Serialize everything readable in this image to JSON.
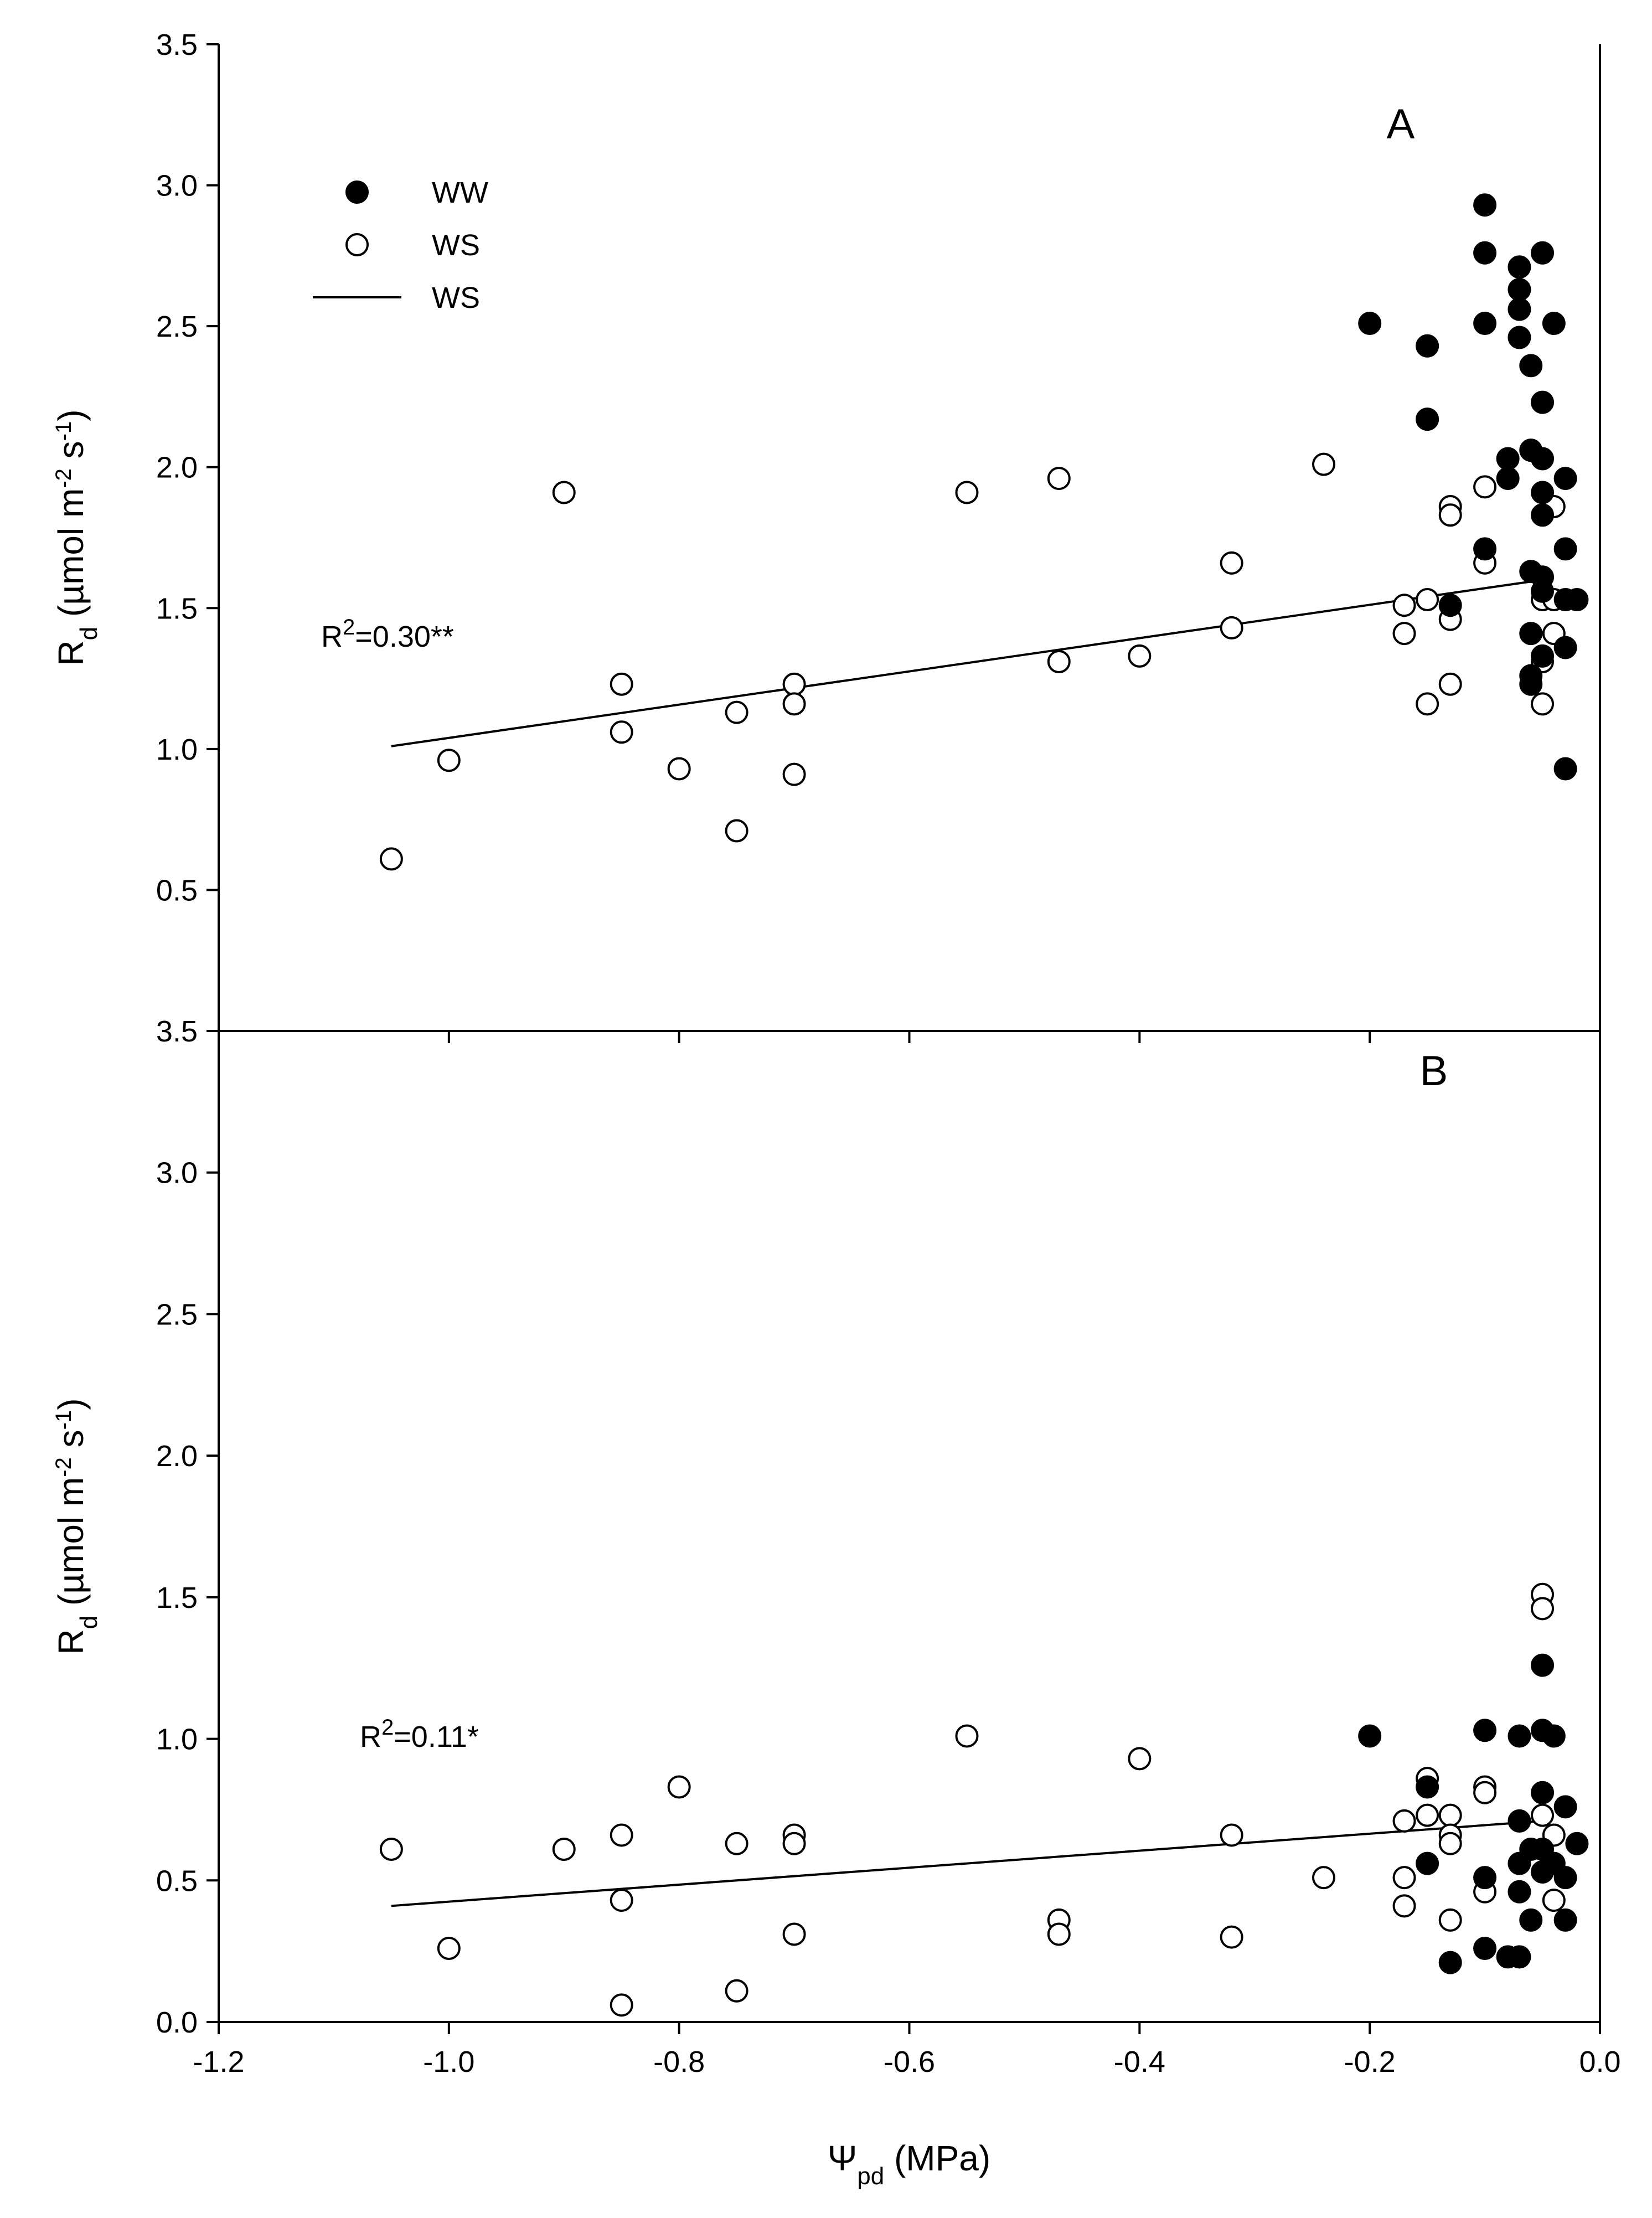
{
  "chart_data": [
    {
      "panel": "A",
      "type": "scatter",
      "xlabel": "Ψ",
      "xlabel_sub": "pd",
      "xlabel_unit": " (MPa)",
      "ylabel": {
        "main": "R",
        "sub": "d",
        "unit_start": " (µmol m",
        "exp1": "-2",
        "mid": " s",
        "exp2": "-1",
        "end": ")"
      },
      "xlim": [
        -1.2,
        0.0
      ],
      "ylim": [
        0.0,
        3.5
      ],
      "xticks": [
        "-1.2",
        "-1.0",
        "-0.8",
        "-0.6",
        "-0.4",
        "-0.2",
        "0.0"
      ],
      "xtick_values": [
        -1.2,
        -1.0,
        -0.8,
        -0.6,
        -0.4,
        -0.2,
        0.0
      ],
      "yticks": [
        "3.5",
        "3.0",
        "2.5",
        "2.0",
        "1.5",
        "1.0",
        "0.5"
      ],
      "ytick_values": [
        3.5,
        3.0,
        2.5,
        2.0,
        1.5,
        1.0,
        0.5
      ],
      "legend": {
        "position": "top-left",
        "items": [
          {
            "marker": "filled-circle",
            "label": "WW"
          },
          {
            "marker": "open-circle",
            "label": "WS"
          },
          {
            "marker": "line",
            "label": "WS"
          }
        ]
      },
      "annotation": {
        "text": "R",
        "sup": "2",
        "rest": "=0.30**"
      },
      "series": [
        {
          "name": "WW",
          "marker": "filled",
          "points": [
            [
              -0.2,
              2.51
            ],
            [
              -0.15,
              2.43
            ],
            [
              -0.15,
              2.17
            ],
            [
              -0.1,
              2.93
            ],
            [
              -0.1,
              2.76
            ],
            [
              -0.1,
              2.51
            ],
            [
              -0.07,
              2.71
            ],
            [
              -0.07,
              2.63
            ],
            [
              -0.07,
              2.56
            ],
            [
              -0.07,
              2.46
            ],
            [
              -0.06,
              2.36
            ],
            [
              -0.05,
              2.76
            ],
            [
              -0.04,
              2.51
            ],
            [
              -0.05,
              2.23
            ],
            [
              -0.08,
              2.03
            ],
            [
              -0.08,
              1.96
            ],
            [
              -0.06,
              2.06
            ],
            [
              -0.05,
              2.03
            ],
            [
              -0.03,
              1.96
            ],
            [
              -0.05,
              1.91
            ],
            [
              -0.05,
              1.83
            ],
            [
              -0.1,
              1.71
            ],
            [
              -0.03,
              1.71
            ],
            [
              -0.06,
              1.63
            ],
            [
              -0.05,
              1.61
            ],
            [
              -0.05,
              1.56
            ],
            [
              -0.13,
              1.51
            ],
            [
              -0.03,
              1.53
            ],
            [
              -0.02,
              1.53
            ],
            [
              -0.06,
              1.41
            ],
            [
              -0.03,
              1.36
            ],
            [
              -0.05,
              1.33
            ],
            [
              -0.06,
              1.26
            ],
            [
              -0.06,
              1.23
            ],
            [
              -0.03,
              0.93
            ]
          ]
        },
        {
          "name": "WS",
          "marker": "open",
          "points": [
            [
              -1.05,
              0.61
            ],
            [
              -1.0,
              0.96
            ],
            [
              -0.9,
              1.91
            ],
            [
              -0.85,
              1.23
            ],
            [
              -0.85,
              1.06
            ],
            [
              -0.8,
              0.93
            ],
            [
              -0.75,
              1.13
            ],
            [
              -0.75,
              0.71
            ],
            [
              -0.7,
              1.23
            ],
            [
              -0.7,
              1.16
            ],
            [
              -0.7,
              0.91
            ],
            [
              -0.55,
              1.91
            ],
            [
              -0.47,
              1.96
            ],
            [
              -0.47,
              1.31
            ],
            [
              -0.4,
              1.33
            ],
            [
              -0.32,
              1.66
            ],
            [
              -0.32,
              1.43
            ],
            [
              -0.24,
              2.01
            ],
            [
              -0.17,
              1.51
            ],
            [
              -0.17,
              1.41
            ],
            [
              -0.15,
              1.53
            ],
            [
              -0.15,
              1.16
            ],
            [
              -0.13,
              1.86
            ],
            [
              -0.13,
              1.83
            ],
            [
              -0.13,
              1.46
            ],
            [
              -0.13,
              1.23
            ],
            [
              -0.1,
              1.93
            ],
            [
              -0.1,
              1.66
            ],
            [
              -0.05,
              1.53
            ],
            [
              -0.05,
              1.31
            ],
            [
              -0.05,
              1.16
            ],
            [
              -0.04,
              1.86
            ],
            [
              -0.04,
              1.53
            ],
            [
              -0.04,
              1.41
            ]
          ]
        }
      ],
      "fit": {
        "series": "WS",
        "x": [
          -1.05,
          -0.05
        ],
        "y": [
          1.01,
          1.6
        ]
      }
    },
    {
      "panel": "B",
      "type": "scatter",
      "xlabel": "Ψ",
      "xlabel_sub": "pd",
      "xlabel_unit": " (MPa)",
      "ylabel": {
        "main": "R",
        "sub": "d",
        "unit_start": " (µmol m",
        "exp1": "-2",
        "mid": " s",
        "exp2": "-1",
        "end": ")"
      },
      "xlim": [
        -1.2,
        0.0
      ],
      "ylim": [
        0.0,
        3.5
      ],
      "xticks": [
        "-1.2",
        "-1.0",
        "-0.8",
        "-0.6",
        "-0.4",
        "-0.2",
        "0.0"
      ],
      "xtick_values": [
        -1.2,
        -1.0,
        -0.8,
        -0.6,
        -0.4,
        -0.2,
        0.0
      ],
      "yticks": [
        "3.5",
        "3.0",
        "2.5",
        "2.0",
        "1.5",
        "1.0",
        "0.5",
        "0.0"
      ],
      "ytick_values": [
        3.5,
        3.0,
        2.5,
        2.0,
        1.5,
        1.0,
        0.5,
        0.0
      ],
      "annotation": {
        "text": "R",
        "sup": "2",
        "rest": "=0.11*"
      },
      "series": [
        {
          "name": "WW",
          "marker": "filled",
          "points": [
            [
              -0.2,
              1.01
            ],
            [
              -0.15,
              0.83
            ],
            [
              -0.15,
              0.56
            ],
            [
              -0.13,
              0.21
            ],
            [
              -0.1,
              1.03
            ],
            [
              -0.1,
              0.51
            ],
            [
              -0.1,
              0.26
            ],
            [
              -0.08,
              0.23
            ],
            [
              -0.07,
              1.01
            ],
            [
              -0.07,
              0.71
            ],
            [
              -0.07,
              0.56
            ],
            [
              -0.07,
              0.46
            ],
            [
              -0.07,
              0.23
            ],
            [
              -0.06,
              0.61
            ],
            [
              -0.06,
              0.36
            ],
            [
              -0.05,
              1.26
            ],
            [
              -0.05,
              1.03
            ],
            [
              -0.05,
              0.81
            ],
            [
              -0.05,
              0.61
            ],
            [
              -0.05,
              0.53
            ],
            [
              -0.04,
              1.01
            ],
            [
              -0.04,
              0.56
            ],
            [
              -0.03,
              0.76
            ],
            [
              -0.03,
              0.51
            ],
            [
              -0.03,
              0.36
            ],
            [
              -0.02,
              0.63
            ]
          ]
        },
        {
          "name": "WS",
          "marker": "open",
          "points": [
            [
              -1.05,
              0.61
            ],
            [
              -1.0,
              0.26
            ],
            [
              -0.9,
              0.61
            ],
            [
              -0.85,
              0.66
            ],
            [
              -0.85,
              0.43
            ],
            [
              -0.85,
              0.06
            ],
            [
              -0.8,
              0.83
            ],
            [
              -0.75,
              0.63
            ],
            [
              -0.75,
              0.11
            ],
            [
              -0.7,
              0.66
            ],
            [
              -0.7,
              0.63
            ],
            [
              -0.7,
              0.31
            ],
            [
              -0.55,
              1.01
            ],
            [
              -0.47,
              0.36
            ],
            [
              -0.47,
              0.31
            ],
            [
              -0.4,
              0.93
            ],
            [
              -0.32,
              0.66
            ],
            [
              -0.32,
              0.3
            ],
            [
              -0.24,
              0.51
            ],
            [
              -0.17,
              0.71
            ],
            [
              -0.17,
              0.51
            ],
            [
              -0.17,
              0.41
            ],
            [
              -0.15,
              0.86
            ],
            [
              -0.15,
              0.73
            ],
            [
              -0.13,
              0.73
            ],
            [
              -0.13,
              0.66
            ],
            [
              -0.13,
              0.63
            ],
            [
              -0.13,
              0.36
            ],
            [
              -0.1,
              0.83
            ],
            [
              -0.1,
              0.81
            ],
            [
              -0.1,
              0.46
            ],
            [
              -0.05,
              1.51
            ],
            [
              -0.05,
              1.46
            ],
            [
              -0.05,
              0.73
            ],
            [
              -0.04,
              0.66
            ],
            [
              -0.04,
              0.43
            ]
          ]
        }
      ],
      "fit": {
        "series": "WS",
        "x": [
          -1.05,
          -0.05
        ],
        "y": [
          0.41,
          0.71
        ]
      }
    }
  ]
}
